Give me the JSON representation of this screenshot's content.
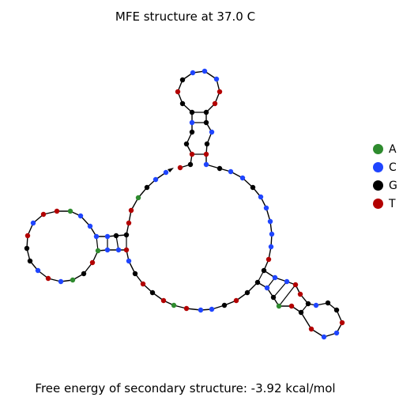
{
  "title": "MFE structure at 37.0 C",
  "energy_label": "Free energy of secondary structure: -3.92 kcal/mol",
  "legend": [
    {
      "label": "A",
      "color": "#2e8b2e"
    },
    {
      "label": "C",
      "color": "#1f45ff"
    },
    {
      "label": "G",
      "color": "#000000"
    },
    {
      "label": "T",
      "color": "#b30000"
    }
  ]
}
